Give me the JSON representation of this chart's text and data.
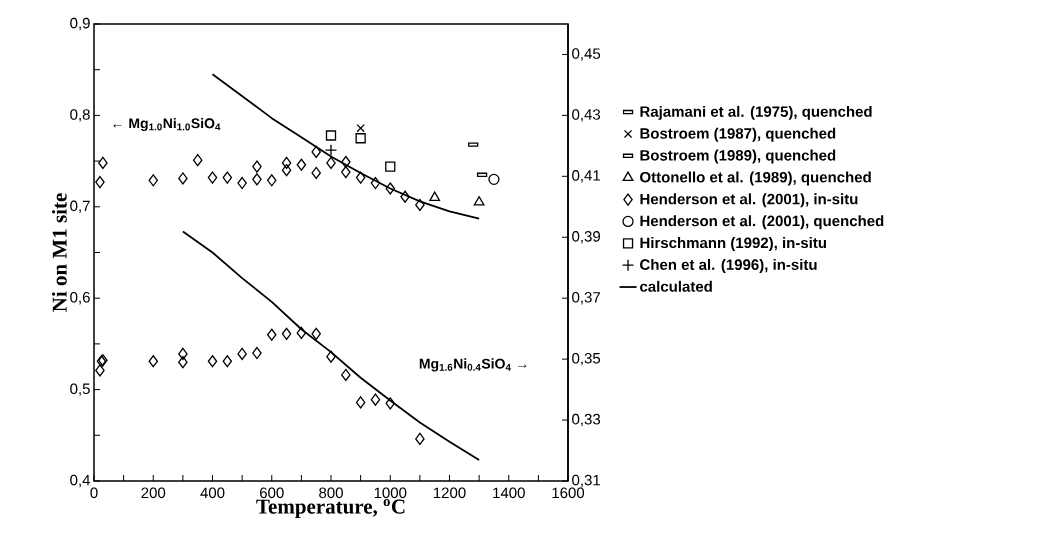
{
  "chart_data": {
    "type": "scatter",
    "xlabel": "Temperature, $^{o}$C",
    "ylabel": "Ni on M1 site",
    "annotations": [
      "←  Mg$_{1.0}$Ni$_{1.0}$SiO$_{4}$",
      "Mg$_{1.6}$Ni$_{0.4}$SiO$_{4}$  →"
    ],
    "xlim": [
      0,
      1600
    ],
    "ylim": [
      0.4,
      0.9
    ],
    "y2lim": [
      0.31,
      0.46
    ],
    "xticks": [
      0,
      {
        "value": 100,
        "label": null
      },
      200,
      {
        "value": 300,
        "label": null
      },
      400,
      {
        "value": 500,
        "label": null
      },
      600,
      {
        "value": 700,
        "label": null
      },
      800,
      {
        "value": 900,
        "label": null
      },
      1000,
      {
        "value": 1100,
        "label": null
      },
      1200,
      {
        "value": 1300,
        "label": null
      },
      1400,
      {
        "value": 1500,
        "label": null
      },
      1600
    ],
    "yticks": [
      {
        "value": 0.4,
        "label": "0,4"
      },
      {
        "value": 0.45,
        "label": null
      },
      {
        "value": 0.5,
        "label": "0,5"
      },
      {
        "value": 0.55,
        "label": null
      },
      {
        "value": 0.6,
        "label": "0,6"
      },
      {
        "value": 0.65,
        "label": null
      },
      {
        "value": 0.7,
        "label": "0,7"
      },
      {
        "value": 0.75,
        "label": null
      },
      {
        "value": 0.8,
        "label": "0,8"
      },
      {
        "value": 0.85,
        "label": null
      },
      {
        "value": 0.9,
        "label": "0,9"
      }
    ],
    "y2ticks": [
      {
        "value": 0.31,
        "label": "0,31"
      },
      {
        "value": 0.33,
        "label": "0,33"
      },
      {
        "value": 0.35,
        "label": "0,35"
      },
      {
        "value": 0.37,
        "label": "0,37"
      },
      {
        "value": 0.39,
        "label": "0,39"
      },
      {
        "value": 0.41,
        "label": "0,41"
      },
      {
        "value": 0.43,
        "label": "0,43"
      },
      {
        "value": 0.45,
        "label": "0,45"
      }
    ],
    "legend": "right",
    "series": [
      {
        "name": "Rajamani et al. (1975), quenched",
        "marker": "square",
        "color": "#000000",
        "x": [
          1280
        ],
        "values": [
          0.768
        ]
      },
      {
        "name": "Bostroem (1987), quenched",
        "marker": "cross",
        "color": "#000000",
        "x": [
          900
        ],
        "values": [
          0.786
        ]
      },
      {
        "name": "Bostroem (1989), quenched",
        "marker": "square",
        "color": "#000000",
        "x": [
          1310
        ],
        "values": [
          0.735
        ]
      },
      {
        "name": "Ottonello et al. (1989), quenched",
        "marker": "triangle",
        "color": "#000000",
        "x": [
          1150,
          1300
        ],
        "values": [
          0.71,
          0.705
        ]
      },
      {
        "name": "Henderson et al. (2001), in-situ",
        "marker": "diamond",
        "color": "#000000",
        "x": [
          20,
          30,
          200,
          300,
          350,
          400,
          450,
          500,
          550,
          550,
          600,
          650,
          650,
          700,
          750,
          750,
          800,
          850,
          850,
          900,
          950,
          1000,
          1050,
          1100,
          20,
          25,
          30,
          200,
          300,
          300,
          400,
          450,
          500,
          550,
          600,
          650,
          700,
          750,
          800,
          850,
          900,
          950,
          1000,
          1100
        ],
        "values": [
          0.727,
          0.748,
          0.729,
          0.731,
          0.751,
          0.732,
          0.732,
          0.726,
          0.744,
          0.73,
          0.729,
          0.748,
          0.74,
          0.746,
          0.737,
          0.76,
          0.748,
          0.749,
          0.738,
          0.732,
          0.726,
          0.72,
          0.711,
          0.702,
          0.521,
          0.531,
          0.532,
          0.531,
          0.539,
          0.53,
          0.531,
          0.531,
          0.539,
          0.54,
          0.56,
          0.561,
          0.562,
          0.561,
          0.536,
          0.516,
          0.486,
          0.489,
          0.485,
          0.446
        ]
      },
      {
        "name": "Henderson et al. (2001), quenched",
        "marker": "circle",
        "color": "#000000",
        "x": [
          1350
        ],
        "values": [
          0.73
        ]
      },
      {
        "name": "Hirschmann (1992), in-situ",
        "marker": "square",
        "color": "#000000",
        "x": [
          800,
          900,
          1000
        ],
        "values": [
          0.778,
          0.775,
          0.744
        ]
      },
      {
        "name": "Chen et al. (1996),  in-situ",
        "marker": "plus",
        "color": "#000000",
        "x": [
          800
        ],
        "values": [
          0.762
        ]
      },
      {
        "name": "calculated",
        "type": "line",
        "marker": "none",
        "line_style": "solid",
        "color": "#000000",
        "x": [
          400,
          500,
          600,
          700,
          800,
          900,
          1000,
          1100,
          1200,
          1300
        ],
        "values": [
          0.845,
          0.821,
          0.797,
          0.776,
          0.755,
          0.737,
          0.72,
          0.706,
          0.695,
          0.687
        ]
      },
      {
        "type": "line",
        "marker": "none",
        "line_style": "solid",
        "color": "#000000",
        "x": [
          300,
          400,
          500,
          600,
          700,
          800,
          900,
          1000,
          1100,
          1200,
          1300
        ],
        "values": [
          0.673,
          0.65,
          0.622,
          0.596,
          0.566,
          0.541,
          0.513,
          0.488,
          0.464,
          0.443,
          0.423
        ]
      }
    ]
  }
}
